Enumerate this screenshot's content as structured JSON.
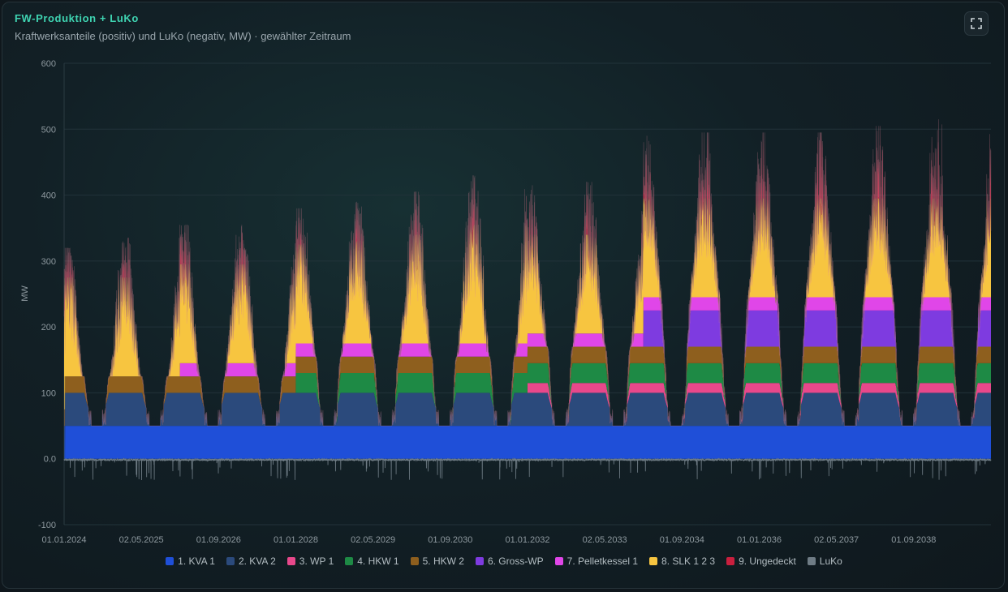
{
  "header": {
    "title": "FW-Produktion + LuKo",
    "subtitle": "Kraftwerksanteile (positiv) und LuKo (negativ, MW) · gewählter Zeitraum"
  },
  "toolbar": {
    "fullscreen_icon": "fullscreen-icon"
  },
  "chart_data": {
    "type": "area",
    "stacked": true,
    "title": "FW-Produktion + LuKo",
    "subtitle": "Kraftwerksanteile (positiv) und LuKo (negativ, MW) · gewählter Zeitraum",
    "ylabel": "MW",
    "ylim": [
      -100,
      600
    ],
    "yticks": [
      "600",
      "500",
      "400",
      "300",
      "200",
      "100",
      "0.0",
      "-100"
    ],
    "xlim": [
      "2024-01-01",
      "2039-12-31"
    ],
    "xticks": [
      "01.01.2024",
      "02.05.2025",
      "01.09.2026",
      "01.01.2028",
      "02.05.2029",
      "01.09.2030",
      "01.01.2032",
      "02.05.2033",
      "01.09.2034",
      "01.01.2036",
      "02.05.2037",
      "01.09.2038"
    ],
    "grid": true,
    "legend_position": "bottom-center",
    "series": [
      {
        "name": "1. KVA 1",
        "color": "#1f4fd8",
        "typical_level_mw": 50,
        "yearly_winter_peak": [
          50,
          50,
          50,
          50,
          50,
          50,
          50,
          50,
          50,
          50,
          50,
          50,
          50,
          50,
          50,
          50
        ]
      },
      {
        "name": "2. KVA 2",
        "color": "#2b4a7c",
        "typical_level_mw": 50,
        "yearly_winter_peak": [
          50,
          50,
          50,
          50,
          50,
          50,
          50,
          50,
          50,
          50,
          50,
          50,
          50,
          50,
          50,
          50
        ]
      },
      {
        "name": "3. WP 1",
        "color": "#e8488b",
        "yearly_winter_peak": [
          0,
          0,
          0,
          0,
          0,
          0,
          0,
          0,
          15,
          15,
          15,
          15,
          15,
          15,
          15,
          15
        ]
      },
      {
        "name": "4. HKW 1",
        "color": "#1e8a45",
        "yearly_winter_peak": [
          0,
          0,
          0,
          0,
          30,
          30,
          30,
          30,
          30,
          30,
          30,
          30,
          30,
          30,
          30,
          30
        ]
      },
      {
        "name": "5. HKW 2",
        "color": "#8e5f1e",
        "yearly_winter_peak": [
          25,
          25,
          25,
          25,
          25,
          25,
          25,
          25,
          25,
          25,
          25,
          25,
          25,
          25,
          25,
          25
        ]
      },
      {
        "name": "6. Gross-WP",
        "color": "#7e3be0",
        "yearly_winter_peak": [
          0,
          0,
          0,
          0,
          0,
          0,
          0,
          0,
          0,
          0,
          55,
          55,
          55,
          55,
          55,
          55
        ]
      },
      {
        "name": "7. Pelletkessel 1",
        "color": "#e046e8",
        "yearly_winter_peak": [
          0,
          0,
          20,
          20,
          20,
          20,
          20,
          20,
          20,
          20,
          20,
          20,
          20,
          20,
          20,
          20
        ]
      },
      {
        "name": "8. SLK 1 2 3",
        "color": "#f7c540",
        "yearly_winter_peak": [
          150,
          150,
          150,
          150,
          150,
          155,
          165,
          180,
          150,
          150,
          150,
          150,
          150,
          150,
          150,
          150
        ]
      },
      {
        "name": "9. Ungedeckt",
        "color": "#c91f3e",
        "yearly_winter_peak": [
          45,
          60,
          60,
          60,
          55,
          60,
          65,
          75,
          75,
          80,
          95,
          100,
          100,
          100,
          110,
          120
        ]
      },
      {
        "name": "LuKo",
        "color": "#6f7c85",
        "typical_level_mw": -3,
        "min_mw": -33
      }
    ]
  }
}
